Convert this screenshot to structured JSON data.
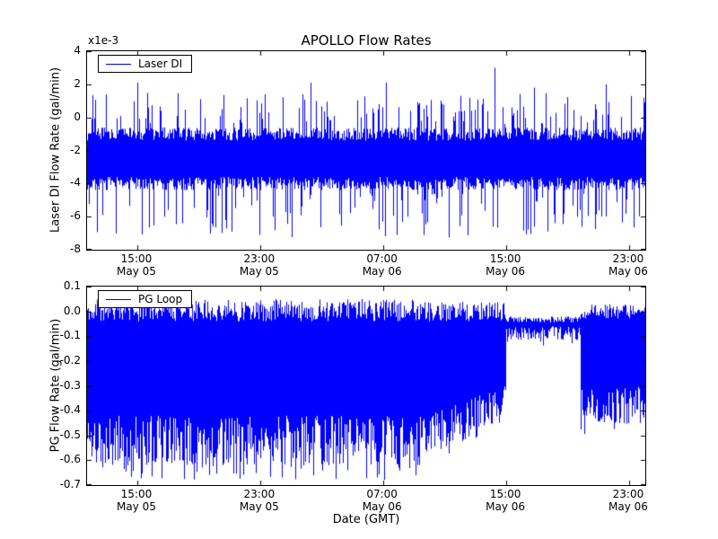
{
  "figure": {
    "title": "APOLLO Flow Rates",
    "xlabel": "Date (GMT)",
    "line_color": "#0000ff",
    "background": "#ffffff"
  },
  "chart_data": [
    {
      "type": "line",
      "name": "laser-di",
      "title": "APOLLO Flow Rates",
      "ylabel": "Laser DI Flow Rate (gal/min)",
      "offset_label": "x1e-3",
      "legend": [
        "Laser DI"
      ],
      "legend_position": "upper left",
      "grid": false,
      "ylim": [
        -8,
        4
      ],
      "yticks": [
        "4",
        "2",
        "0",
        "-2",
        "-4",
        "-6",
        "-8"
      ],
      "ytick_values": [
        4,
        2,
        0,
        -2,
        -4,
        -6,
        -8
      ],
      "xticks": [
        {
          "frac": 0.09,
          "time": "15:00",
          "date": "May 05"
        },
        {
          "frac": 0.31,
          "time": "23:00",
          "date": "May 05"
        },
        {
          "frac": 0.53,
          "time": "07:00",
          "date": "May 06"
        },
        {
          "frac": 0.751,
          "time": "15:00",
          "date": "May 06"
        },
        {
          "frac": 0.971,
          "time": "23:00",
          "date": "May 06"
        }
      ],
      "signal": {
        "seed": 7,
        "units": "1e-3 gal/min",
        "description": "Dense noisy band centered near -2.5e-3 with frequent spikes down to -7e-3 and up to +2e-3; one spike reaches +3e-3",
        "segments": [
          {
            "t0": 0.0,
            "t1": 1.0,
            "hi": [
              -1.4,
              -0.6
            ],
            "lo": [
              -4.4,
              -3.6
            ],
            "up_spike_prob": 0.16,
            "up_spike": [
              -0.4,
              1.5
            ],
            "down_spike_prob": 0.2,
            "down_spike": [
              -7.3,
              -4.6
            ]
          }
        ],
        "feature_spikes": [
          {
            "frac": 0.09,
            "value": 2.1,
            "base": -2.5
          },
          {
            "frac": 0.4,
            "value": 2.1,
            "base": -2.5
          },
          {
            "frac": 0.535,
            "value": 2.1,
            "base": -2.5
          },
          {
            "frac": 0.73,
            "value": 3.0,
            "base": -2.5
          },
          {
            "frac": 0.8,
            "value": 1.8,
            "base": -2.5
          },
          {
            "frac": 0.93,
            "value": 2.0,
            "base": -2.5
          }
        ]
      }
    },
    {
      "type": "line",
      "name": "pg-loop",
      "title": "",
      "ylabel": "PG Flow Rate (gal/min)",
      "offset_label": "",
      "legend": [
        "PG Loop"
      ],
      "legend_position": "upper left",
      "grid": false,
      "ylim": [
        -0.7,
        0.1
      ],
      "yticks": [
        "0.1",
        "0.0",
        "-0.1",
        "-0.2",
        "-0.3",
        "-0.4",
        "-0.5",
        "-0.6",
        "-0.7"
      ],
      "ytick_values": [
        0.1,
        0.0,
        -0.1,
        -0.2,
        -0.3,
        -0.4,
        -0.5,
        -0.6,
        -0.7
      ],
      "xticks": [
        {
          "frac": 0.09,
          "time": "15:00",
          "date": "May 05"
        },
        {
          "frac": 0.31,
          "time": "23:00",
          "date": "May 05"
        },
        {
          "frac": 0.53,
          "time": "07:00",
          "date": "May 06"
        },
        {
          "frac": 0.751,
          "time": "15:00",
          "date": "May 06"
        },
        {
          "frac": 0.971,
          "time": "23:00",
          "date": "May 06"
        }
      ],
      "signal": {
        "seed": 11,
        "units": "gal/min",
        "description": "Dense oscillation between ~0 and -0.65 until ~13:00 May 06; lower envelope rises toward 15:00; quiet interval near -0.05 to -0.1 from 15:00 to ~20:00 May 06; brief dip to -0.5 then dense band 0 to -0.45 to end",
        "segments": [
          {
            "t0": 0.0,
            "t1": 0.6,
            "hi": [
              -0.04,
              0.05
            ],
            "lo": [
              -0.62,
              -0.42
            ],
            "down_spike_prob": 0.12,
            "down_spike": [
              -0.68,
              -0.6
            ]
          },
          {
            "t0": 0.6,
            "t1": 0.751,
            "hi": [
              -0.04,
              0.04
            ],
            "lo": [
              -0.6,
              -0.42
            ],
            "lo_end": [
              -0.44,
              -0.3
            ],
            "down_spike_prob": 0.1,
            "down_spike": [
              -0.64,
              -0.55
            ],
            "down_spike_end": [
              -0.46,
              -0.38
            ]
          },
          {
            "t0": 0.751,
            "t1": 0.885,
            "hi": [
              -0.045,
              -0.02
            ],
            "lo": [
              -0.115,
              -0.06
            ],
            "down_spike_prob": 0.04,
            "down_spike": [
              -0.16,
              -0.12
            ]
          },
          {
            "t0": 0.885,
            "t1": 0.9,
            "hi": [
              -0.03,
              0.0
            ],
            "lo": [
              -0.52,
              -0.3
            ]
          },
          {
            "t0": 0.9,
            "t1": 1.0,
            "hi": [
              -0.03,
              0.03
            ],
            "lo": [
              -0.46,
              -0.3
            ],
            "down_spike_prob": 0.08,
            "down_spike": [
              -0.52,
              -0.44
            ]
          }
        ],
        "feature_spikes": []
      }
    }
  ]
}
